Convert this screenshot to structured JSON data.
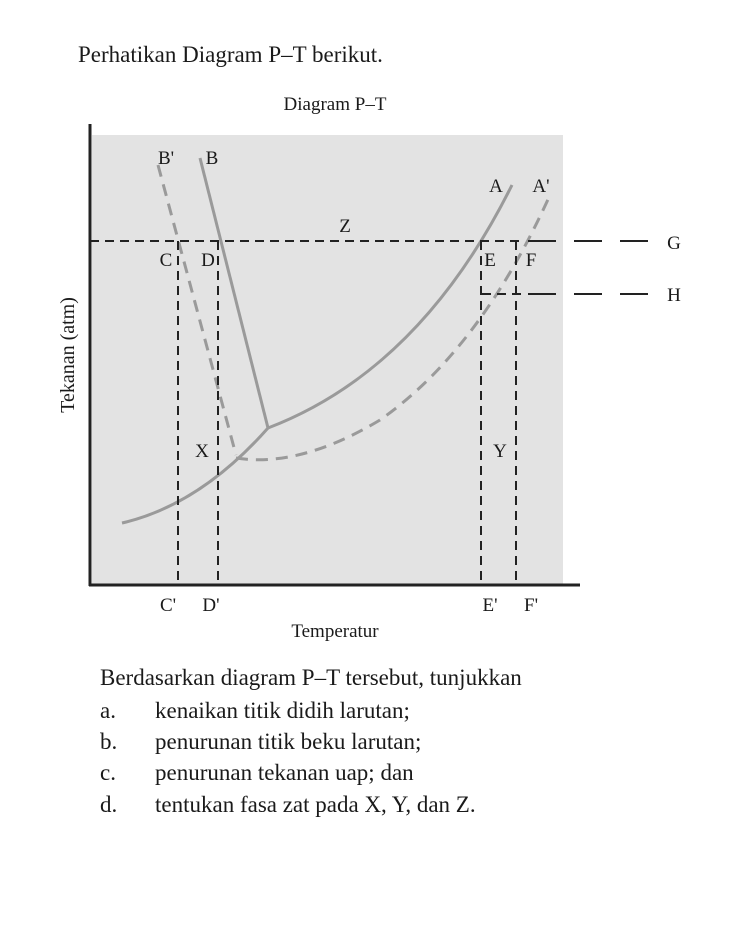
{
  "intro": "Perhatikan Diagram P–T berikut.",
  "diagram": {
    "title": "Diagram P–T",
    "y_axis_label": "Tekanan (atm)",
    "x_axis_label": "Temperatur",
    "labels": [
      "B'",
      "B",
      "A",
      "A'",
      "Z",
      "C",
      "D",
      "E",
      "F",
      "G",
      "H",
      "X",
      "Y",
      "C'",
      "D'",
      "E'",
      "F'"
    ]
  },
  "question": {
    "lead": "Berdasarkan diagram P–T tersebut, tunjukkan",
    "items": [
      {
        "letter": "a.",
        "text": "kenaikan titik didih larutan;"
      },
      {
        "letter": "b.",
        "text": "penurunan titik beku larutan;"
      },
      {
        "letter": "c.",
        "text": "penurunan tekanan uap; dan"
      },
      {
        "letter": "d.",
        "text": "tentukan fasa zat pada X, Y, dan Z."
      }
    ]
  }
}
